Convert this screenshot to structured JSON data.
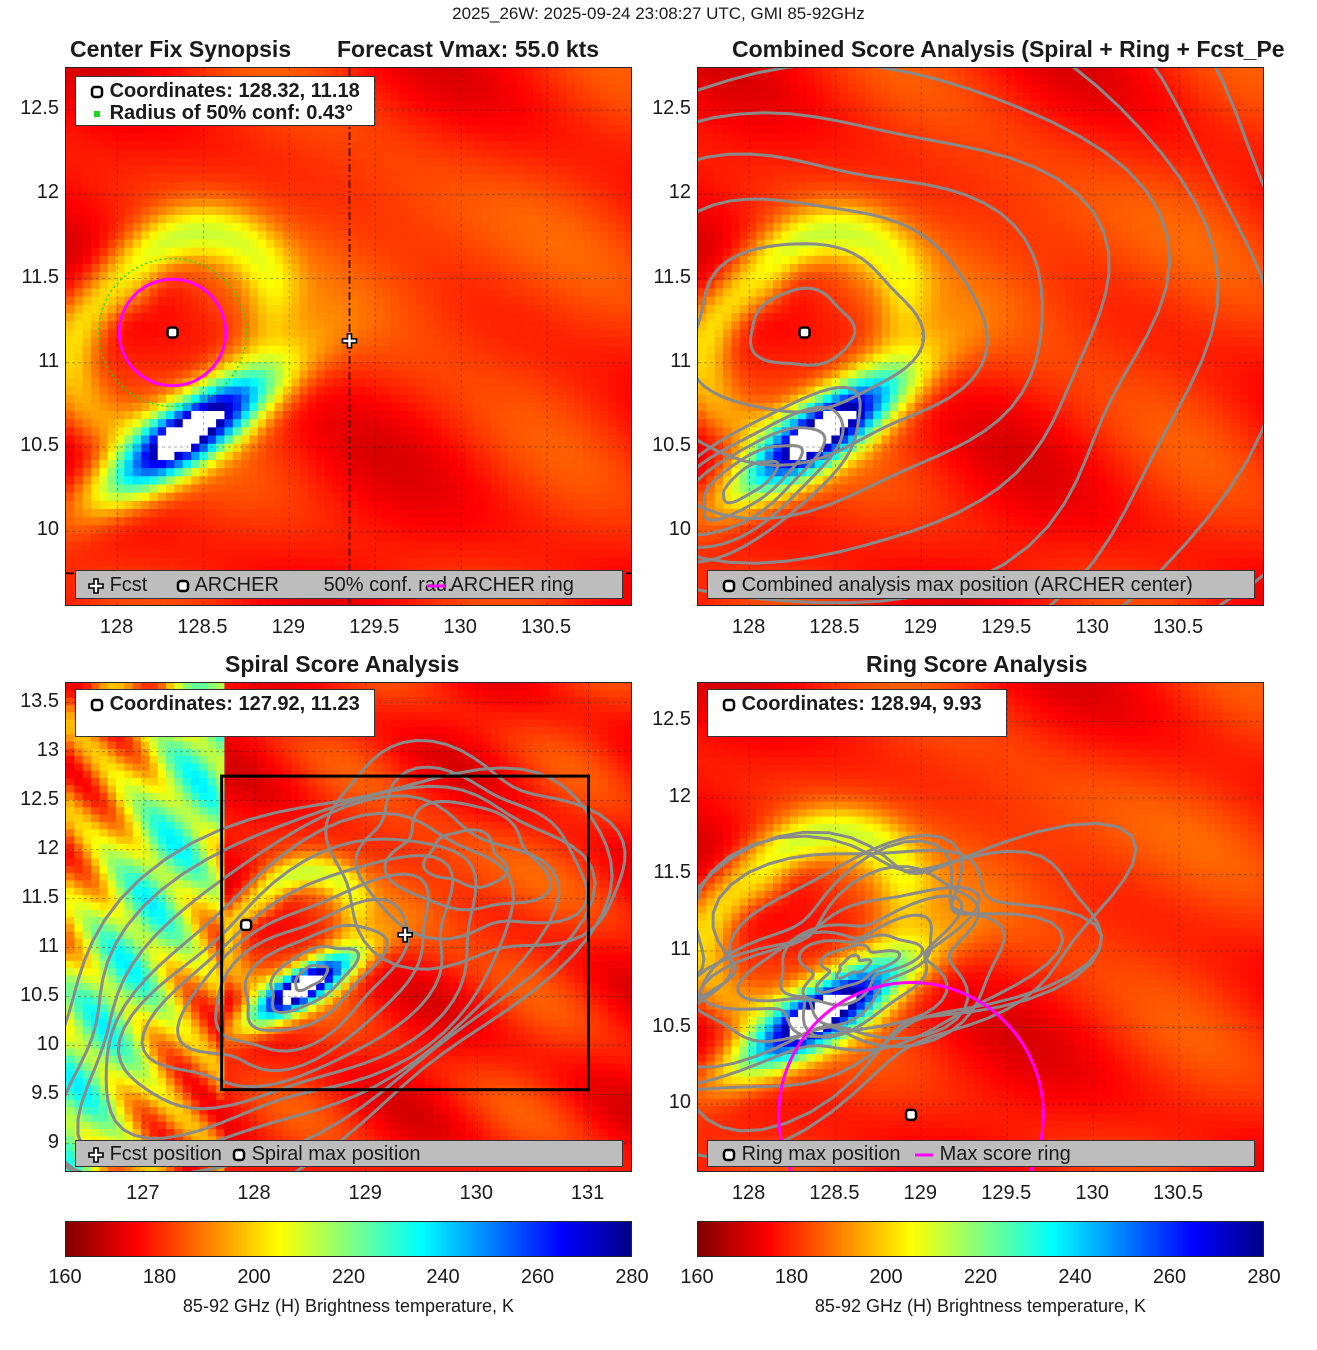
{
  "suptitle": "2025_26W: 2025-09-24 23:08:27 UTC, GMI 85-92GHz",
  "colors": {
    "archer_ring": "#ff00ff",
    "conf_circle": "#1ed61e",
    "contour": "#8a8a8a",
    "colormap": "jet"
  },
  "panels": {
    "synopsis": {
      "title_left": "Center Fix Synopsis",
      "title_right": "Forecast Vmax: 55.0 kts",
      "info_line1": "Coordinates: 128.32, 11.18",
      "info_line2": "Radius of 50% conf: 0.43°",
      "legend": [
        "Fcst",
        "ARCHER",
        "50% conf. rad.",
        "ARCHER ring"
      ],
      "x_ticks": [
        "128",
        "128.5",
        "129",
        "129.5",
        "130",
        "130.5"
      ],
      "y_ticks": [
        "12.5",
        "12",
        "11.5",
        "11",
        "10.5",
        "10"
      ]
    },
    "combined": {
      "title": "Combined Score Analysis (Spiral + Ring + Fcst_Pe",
      "legend": [
        "Combined analysis max position (ARCHER center)"
      ],
      "x_ticks": [
        "128",
        "128.5",
        "129",
        "129.5",
        "130",
        "130.5"
      ],
      "y_ticks": [
        "12.5",
        "12",
        "11.5",
        "11",
        "10.5",
        "10"
      ]
    },
    "spiral": {
      "title": "Spiral Score Analysis",
      "info_line1": "Coordinates: 127.92, 11.23",
      "legend": [
        "Fcst position",
        "Spiral max position"
      ],
      "x_ticks": [
        "127",
        "128",
        "129",
        "130",
        "131"
      ],
      "y_ticks": [
        "13.5",
        "13",
        "12.5",
        "12",
        "11.5",
        "11",
        "10.5",
        "10",
        "9.5",
        "9"
      ]
    },
    "ring": {
      "title": "Ring Score Analysis",
      "info_line1": "Coordinates: 128.94, 9.93",
      "legend": [
        "Ring max position",
        "Max score ring"
      ],
      "x_ticks": [
        "128",
        "128.5",
        "129",
        "129.5",
        "130",
        "130.5"
      ],
      "y_ticks": [
        "12.5",
        "12",
        "11.5",
        "11",
        "10.5",
        "10"
      ]
    }
  },
  "colorbar": {
    "ticks": [
      "160",
      "180",
      "200",
      "220",
      "240",
      "260",
      "280"
    ],
    "label": "85-92 GHz (H) Brightness temperature, K"
  },
  "chart_data": [
    {
      "type": "heatmap",
      "title": "Center Fix Synopsis",
      "xlim": [
        127.7,
        131.0
      ],
      "ylim": [
        9.55,
        12.75
      ],
      "clim": [
        160,
        280
      ],
      "markers": [
        {
          "name": "Fcst",
          "x": 129.35,
          "y": 11.13
        },
        {
          "name": "ARCHER",
          "x": 128.32,
          "y": 11.18
        }
      ],
      "circles": [
        {
          "name": "50% conf. rad.",
          "x": 128.32,
          "y": 11.18,
          "r": 0.43
        },
        {
          "name": "ARCHER ring",
          "x": 128.32,
          "y": 11.18,
          "r": 0.31
        }
      ],
      "crosshair": {
        "x": 129.35,
        "y": 9.75
      }
    },
    {
      "type": "heatmap",
      "title": "Combined Score Analysis",
      "xlim": [
        127.7,
        131.0
      ],
      "ylim": [
        9.55,
        12.75
      ],
      "clim": [
        160,
        280
      ],
      "markers": [
        {
          "name": "Combined analysis max position (ARCHER center)",
          "x": 128.32,
          "y": 11.18
        }
      ]
    },
    {
      "type": "heatmap",
      "title": "Spiral Score Analysis",
      "xlim": [
        126.3,
        131.4
      ],
      "ylim": [
        8.7,
        13.7
      ],
      "clim": [
        160,
        280
      ],
      "markers": [
        {
          "name": "Fcst position",
          "x": 129.35,
          "y": 11.13
        },
        {
          "name": "Spiral max position",
          "x": 127.92,
          "y": 11.23
        }
      ],
      "box": {
        "x0": 127.7,
        "x1": 131.0,
        "y0": 9.55,
        "y1": 12.75
      }
    },
    {
      "type": "heatmap",
      "title": "Ring Score Analysis",
      "xlim": [
        127.7,
        131.0
      ],
      "ylim": [
        9.55,
        12.75
      ],
      "clim": [
        160,
        280
      ],
      "markers": [
        {
          "name": "Ring max position",
          "x": 128.94,
          "y": 9.93
        }
      ],
      "circles": [
        {
          "name": "Max score ring",
          "x": 128.94,
          "y": 9.93,
          "r": 0.77
        }
      ]
    }
  ]
}
